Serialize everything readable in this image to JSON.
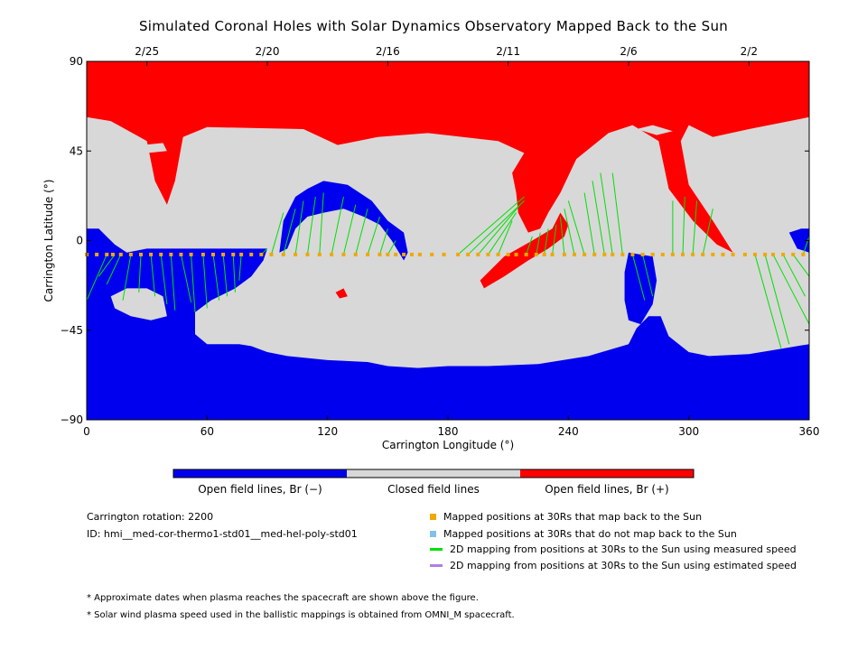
{
  "title": "Simulated Coronal Holes with Solar Dynamics Observatory Mapped Back to the Sun",
  "colors": {
    "open_negative": "#0000ee",
    "closed": "#d8d8d8",
    "open_positive": "#ff0000",
    "mapped": "#f0a800",
    "unmapped": "#82c0ec",
    "measured": "#00e000",
    "estimated": "#b080e0"
  },
  "chart_data": {
    "type": "heatmap",
    "xlabel": "Carrington Longitude (°)",
    "ylabel": "Carrington Latitude (°)",
    "xlim": [
      0,
      360
    ],
    "ylim": [
      -90,
      90
    ],
    "x_ticks": [
      "0",
      "60",
      "120",
      "180",
      "240",
      "300",
      "360"
    ],
    "y_ticks": [
      "90",
      "45",
      "0",
      "−45",
      "−90"
    ],
    "top_axis_dates": [
      {
        "label": "2/25",
        "lon": 30
      },
      {
        "label": "2/20",
        "lon": 90
      },
      {
        "label": "2/16",
        "lon": 150
      },
      {
        "label": "2/11",
        "lon": 210
      },
      {
        "label": "2/6",
        "lon": 270
      },
      {
        "label": "2/2",
        "lon": 330
      }
    ],
    "regions": [
      {
        "name": "north_cap",
        "polarity": "positive",
        "points": [
          [
            0,
            90
          ],
          [
            360,
            90
          ],
          [
            360,
            62
          ],
          [
            330,
            56
          ],
          [
            312,
            52
          ],
          [
            300,
            58
          ],
          [
            296,
            50
          ],
          [
            300,
            28
          ],
          [
            312,
            10
          ],
          [
            322,
            -6
          ],
          [
            314,
            -2
          ],
          [
            302,
            10
          ],
          [
            290,
            26
          ],
          [
            285,
            50
          ],
          [
            272,
            58
          ],
          [
            260,
            54
          ],
          [
            244,
            41
          ],
          [
            236,
            24
          ],
          [
            230,
            14
          ],
          [
            226,
            6
          ],
          [
            220,
            4
          ],
          [
            215,
            14
          ],
          [
            214,
            24
          ],
          [
            212,
            34
          ],
          [
            218,
            44
          ],
          [
            205,
            50
          ],
          [
            170,
            54
          ],
          [
            145,
            52
          ],
          [
            125,
            48
          ],
          [
            108,
            56
          ],
          [
            60,
            57
          ],
          [
            48,
            52
          ],
          [
            44,
            30
          ],
          [
            40,
            18
          ],
          [
            34,
            30
          ],
          [
            30,
            50
          ],
          [
            12,
            60
          ],
          [
            0,
            62
          ]
        ]
      },
      {
        "name": "equator_tongue",
        "polarity": "positive",
        "points": [
          [
            236,
            14
          ],
          [
            240,
            8
          ],
          [
            238,
            2
          ],
          [
            230,
            -4
          ],
          [
            220,
            -10
          ],
          [
            208,
            -18
          ],
          [
            198,
            -24
          ],
          [
            196,
            -20
          ],
          [
            208,
            -8
          ],
          [
            222,
            0
          ],
          [
            232,
            6
          ]
        ]
      },
      {
        "name": "small_pos_island",
        "polarity": "positive",
        "points": [
          [
            124,
            -26
          ],
          [
            128,
            -24
          ],
          [
            130,
            -28
          ],
          [
            126,
            -29
          ]
        ]
      },
      {
        "name": "closed_island_nw",
        "polarity": "closed",
        "points": [
          [
            28,
            48
          ],
          [
            38,
            49
          ],
          [
            40,
            45
          ],
          [
            30,
            44
          ]
        ]
      },
      {
        "name": "closed_island_ne",
        "polarity": "closed",
        "points": [
          [
            274,
            56
          ],
          [
            282,
            58
          ],
          [
            292,
            55
          ],
          [
            284,
            53
          ]
        ]
      },
      {
        "name": "closed_island_ne2",
        "polarity": "closed",
        "points": [
          [
            336,
            52
          ],
          [
            342,
            52
          ],
          [
            344,
            50
          ],
          [
            338,
            49
          ]
        ]
      },
      {
        "name": "south_region",
        "polarity": "negative",
        "points": [
          [
            0,
            -90
          ],
          [
            360,
            -90
          ],
          [
            360,
            -52
          ],
          [
            348,
            -54
          ],
          [
            330,
            -57
          ],
          [
            310,
            -58
          ],
          [
            300,
            -56
          ],
          [
            290,
            -48
          ],
          [
            286,
            -38
          ],
          [
            280,
            -38
          ],
          [
            274,
            -44
          ],
          [
            270,
            -52
          ],
          [
            250,
            -58
          ],
          [
            225,
            -62
          ],
          [
            200,
            -63
          ],
          [
            180,
            -63
          ],
          [
            165,
            -64
          ],
          [
            150,
            -63
          ],
          [
            140,
            -61
          ],
          [
            120,
            -60
          ],
          [
            100,
            -58
          ],
          [
            90,
            -56
          ],
          [
            82,
            -53
          ],
          [
            76,
            -52
          ],
          [
            60,
            -52
          ],
          [
            54,
            -47
          ],
          [
            54,
            -36
          ],
          [
            62,
            -30
          ],
          [
            74,
            -24
          ],
          [
            82,
            -18
          ],
          [
            88,
            -10
          ],
          [
            90,
            -4
          ],
          [
            80,
            -4
          ],
          [
            70,
            -4
          ],
          [
            50,
            -4
          ],
          [
            30,
            -4
          ],
          [
            20,
            -6
          ],
          [
            14,
            -2
          ],
          [
            10,
            2
          ],
          [
            6,
            6
          ],
          [
            0,
            6
          ]
        ]
      },
      {
        "name": "closed_island_sw",
        "polarity": "closed",
        "points": [
          [
            12,
            -28
          ],
          [
            20,
            -24
          ],
          [
            30,
            -24
          ],
          [
            38,
            -28
          ],
          [
            40,
            -38
          ],
          [
            32,
            -40
          ],
          [
            22,
            -38
          ],
          [
            14,
            -34
          ]
        ]
      },
      {
        "name": "mid_hole",
        "polarity": "negative",
        "points": [
          [
            96,
            -6
          ],
          [
            98,
            10
          ],
          [
            104,
            22
          ],
          [
            110,
            26
          ],
          [
            118,
            30
          ],
          [
            130,
            28
          ],
          [
            142,
            20
          ],
          [
            150,
            10
          ],
          [
            158,
            4
          ],
          [
            160,
            -6
          ],
          [
            158,
            -10
          ],
          [
            152,
            0
          ],
          [
            146,
            8
          ],
          [
            138,
            12
          ],
          [
            128,
            16
          ],
          [
            118,
            14
          ],
          [
            110,
            12
          ],
          [
            104,
            6
          ],
          [
            100,
            -4
          ]
        ]
      },
      {
        "name": "hook_hole",
        "polarity": "negative",
        "points": [
          [
            270,
            -6
          ],
          [
            282,
            -8
          ],
          [
            284,
            -20
          ],
          [
            282,
            -32
          ],
          [
            276,
            -42
          ],
          [
            270,
            -40
          ],
          [
            268,
            -30
          ],
          [
            268,
            -16
          ]
        ]
      },
      {
        "name": "east_edge_hole",
        "polarity": "negative",
        "points": [
          [
            350,
            4
          ],
          [
            356,
            6
          ],
          [
            360,
            6
          ],
          [
            360,
            -6
          ],
          [
            354,
            -4
          ]
        ]
      }
    ],
    "map_points": {
      "lat": -7,
      "lon": [
        0,
        5,
        10,
        13,
        17,
        22,
        27,
        32,
        37,
        42,
        47,
        52,
        58,
        63,
        68,
        73,
        77,
        82,
        87,
        92,
        98,
        104,
        110,
        116,
        122,
        128,
        134,
        140,
        146,
        150,
        154,
        158,
        162,
        166,
        172,
        178,
        185,
        190,
        195,
        200,
        205,
        210,
        214,
        219,
        224,
        228,
        232,
        238,
        243,
        248,
        253,
        258,
        262,
        267,
        272,
        277,
        282,
        287,
        292,
        297,
        302,
        307,
        312,
        317,
        322,
        328,
        333,
        338,
        342,
        347,
        352,
        357
      ]
    },
    "mapping_lines_measured": [
      [
        [
          10,
          -7
        ],
        [
          0,
          -30
        ]
      ],
      [
        [
          14,
          -7
        ],
        [
          6,
          -18
        ]
      ],
      [
        [
          17,
          -7
        ],
        [
          10,
          -22
        ]
      ],
      [
        [
          22,
          -7
        ],
        [
          18,
          -30
        ]
      ],
      [
        [
          27,
          -7
        ],
        [
          26,
          -26
        ]
      ],
      [
        [
          32,
          -7
        ],
        [
          34,
          -28
        ]
      ],
      [
        [
          37,
          -7
        ],
        [
          40,
          -32
        ]
      ],
      [
        [
          42,
          -7
        ],
        [
          44,
          -35
        ]
      ],
      [
        [
          47,
          -7
        ],
        [
          52,
          -31
        ]
      ],
      [
        [
          52,
          -7
        ],
        [
          54,
          -36
        ]
      ],
      [
        [
          58,
          -7
        ],
        [
          60,
          -34
        ]
      ],
      [
        [
          63,
          -7
        ],
        [
          66,
          -30
        ]
      ],
      [
        [
          68,
          -7
        ],
        [
          70,
          -28
        ]
      ],
      [
        [
          73,
          -7
        ],
        [
          74,
          -26
        ]
      ],
      [
        [
          77,
          -7
        ],
        [
          76,
          -20
        ]
      ],
      [
        [
          87,
          -7
        ],
        [
          90,
          -4
        ]
      ],
      [
        [
          92,
          -7
        ],
        [
          98,
          14
        ]
      ],
      [
        [
          98,
          -7
        ],
        [
          104,
          16
        ]
      ],
      [
        [
          104,
          -7
        ],
        [
          108,
          20
        ]
      ],
      [
        [
          110,
          -7
        ],
        [
          114,
          22
        ]
      ],
      [
        [
          116,
          -7
        ],
        [
          118,
          24
        ]
      ],
      [
        [
          122,
          -7
        ],
        [
          128,
          22
        ]
      ],
      [
        [
          128,
          -7
        ],
        [
          134,
          18
        ]
      ],
      [
        [
          134,
          -7
        ],
        [
          140,
          16
        ]
      ],
      [
        [
          140,
          -7
        ],
        [
          146,
          12
        ]
      ],
      [
        [
          146,
          -7
        ],
        [
          150,
          6
        ]
      ],
      [
        [
          150,
          -7
        ],
        [
          154,
          0
        ]
      ],
      [
        [
          185,
          -7
        ],
        [
          218,
          22
        ]
      ],
      [
        [
          190,
          -7
        ],
        [
          218,
          20
        ]
      ],
      [
        [
          195,
          -7
        ],
        [
          216,
          18
        ]
      ],
      [
        [
          200,
          -7
        ],
        [
          214,
          14
        ]
      ],
      [
        [
          205,
          -7
        ],
        [
          212,
          10
        ]
      ],
      [
        [
          219,
          -7
        ],
        [
          222,
          2
        ]
      ],
      [
        [
          224,
          -7
        ],
        [
          226,
          4
        ]
      ],
      [
        [
          228,
          -7
        ],
        [
          230,
          6
        ]
      ],
      [
        [
          232,
          -7
        ],
        [
          234,
          8
        ]
      ],
      [
        [
          238,
          -7
        ],
        [
          236,
          12
        ]
      ],
      [
        [
          243,
          -7
        ],
        [
          238,
          16
        ]
      ],
      [
        [
          248,
          -7
        ],
        [
          240,
          20
        ]
      ],
      [
        [
          253,
          -7
        ],
        [
          248,
          24
        ]
      ],
      [
        [
          258,
          -7
        ],
        [
          252,
          30
        ]
      ],
      [
        [
          262,
          -7
        ],
        [
          256,
          34
        ]
      ],
      [
        [
          267,
          -7
        ],
        [
          262,
          34
        ]
      ],
      [
        [
          272,
          -7
        ],
        [
          278,
          -30
        ]
      ],
      [
        [
          277,
          -7
        ],
        [
          282,
          -28
        ]
      ],
      [
        [
          292,
          -7
        ],
        [
          292,
          20
        ]
      ],
      [
        [
          297,
          -7
        ],
        [
          298,
          22
        ]
      ],
      [
        [
          302,
          -7
        ],
        [
          304,
          20
        ]
      ],
      [
        [
          307,
          -7
        ],
        [
          312,
          16
        ]
      ],
      [
        [
          333,
          -7
        ],
        [
          346,
          -54
        ]
      ],
      [
        [
          338,
          -7
        ],
        [
          350,
          -52
        ]
      ],
      [
        [
          342,
          -7
        ],
        [
          360,
          -42
        ]
      ],
      [
        [
          347,
          -7
        ],
        [
          358,
          -28
        ]
      ],
      [
        [
          352,
          -7
        ],
        [
          360,
          -18
        ]
      ],
      [
        [
          357,
          -7
        ],
        [
          360,
          2
        ]
      ]
    ],
    "mapping_lines_estimated": []
  },
  "colorbar": {
    "labels": [
      "Open field lines, Br (−)",
      "Closed field lines",
      "Open field lines, Br (+)"
    ]
  },
  "info": {
    "carrington_rotation": "Carrington rotation: 2200",
    "id": "ID: hmi__med-cor-thermo1-std01__med-hel-poly-std01"
  },
  "legend": {
    "mapped": "Mapped positions at 30Rs that map back to the Sun",
    "unmapped": "Mapped positions at 30Rs that do not map back to the Sun",
    "measured": "2D mapping from positions at 30Rs to the Sun using measured speed",
    "estimated": "2D mapping from positions at 30Rs to the Sun using estimated speed"
  },
  "notes": [
    "* Approximate dates when plasma reaches the spacecraft are shown above the figure.",
    "* Solar wind plasma speed used in the ballistic mappings is obtained from OMNI_M spacecraft."
  ]
}
